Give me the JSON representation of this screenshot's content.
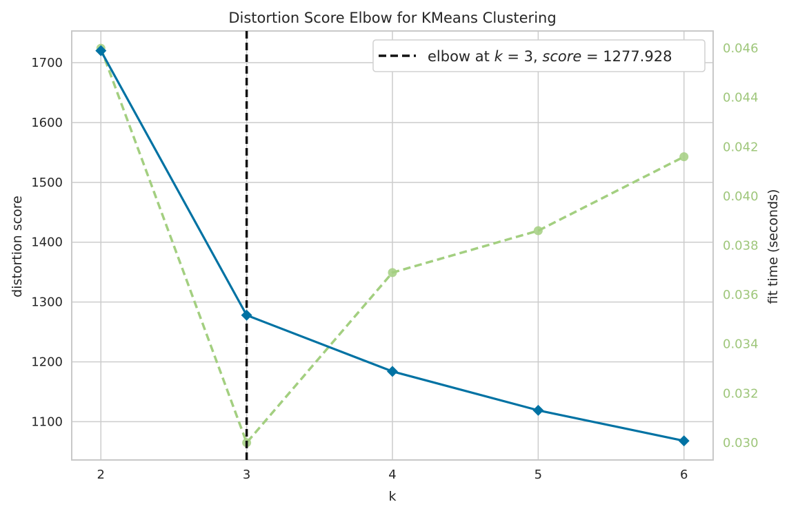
{
  "chart_data": {
    "type": "line",
    "title": "Distortion Score Elbow for KMeans Clustering",
    "xlabel": "k",
    "ylabel": "distortion score",
    "y2label": "fit time (seconds)",
    "x": [
      2,
      3,
      4,
      5,
      6
    ],
    "xlim": [
      1.8,
      6.2
    ],
    "ylim": [
      1036,
      1753
    ],
    "y2lim": [
      0.0293,
      0.0467
    ],
    "xticks": [
      "2",
      "3",
      "4",
      "5",
      "6"
    ],
    "yticks": [
      1100,
      1200,
      1300,
      1400,
      1500,
      1600,
      1700
    ],
    "y2ticks": [
      "0.030",
      "0.032",
      "0.034",
      "0.036",
      "0.038",
      "0.040",
      "0.042",
      "0.044",
      "0.046"
    ],
    "grid": true,
    "legend_position": "top-right",
    "series": [
      {
        "axis": "left",
        "values": [
          1720,
          1277.928,
          1184,
          1119,
          1068
        ],
        "color": "#0072a3",
        "marker": "diamond",
        "style": "solid"
      },
      {
        "axis": "right",
        "values": [
          0.046,
          0.03,
          0.0369,
          0.0386,
          0.0416
        ],
        "color": "#a3cf80",
        "marker": "circle",
        "style": "dashed"
      }
    ],
    "elbow": {
      "k": 3,
      "score": 1277.928,
      "color": "#111111",
      "legend_parts": [
        "elbow at ",
        "k",
        " = 3, ",
        "score",
        " = 1277.928"
      ]
    },
    "right_axis_color": "#9ec67a"
  }
}
